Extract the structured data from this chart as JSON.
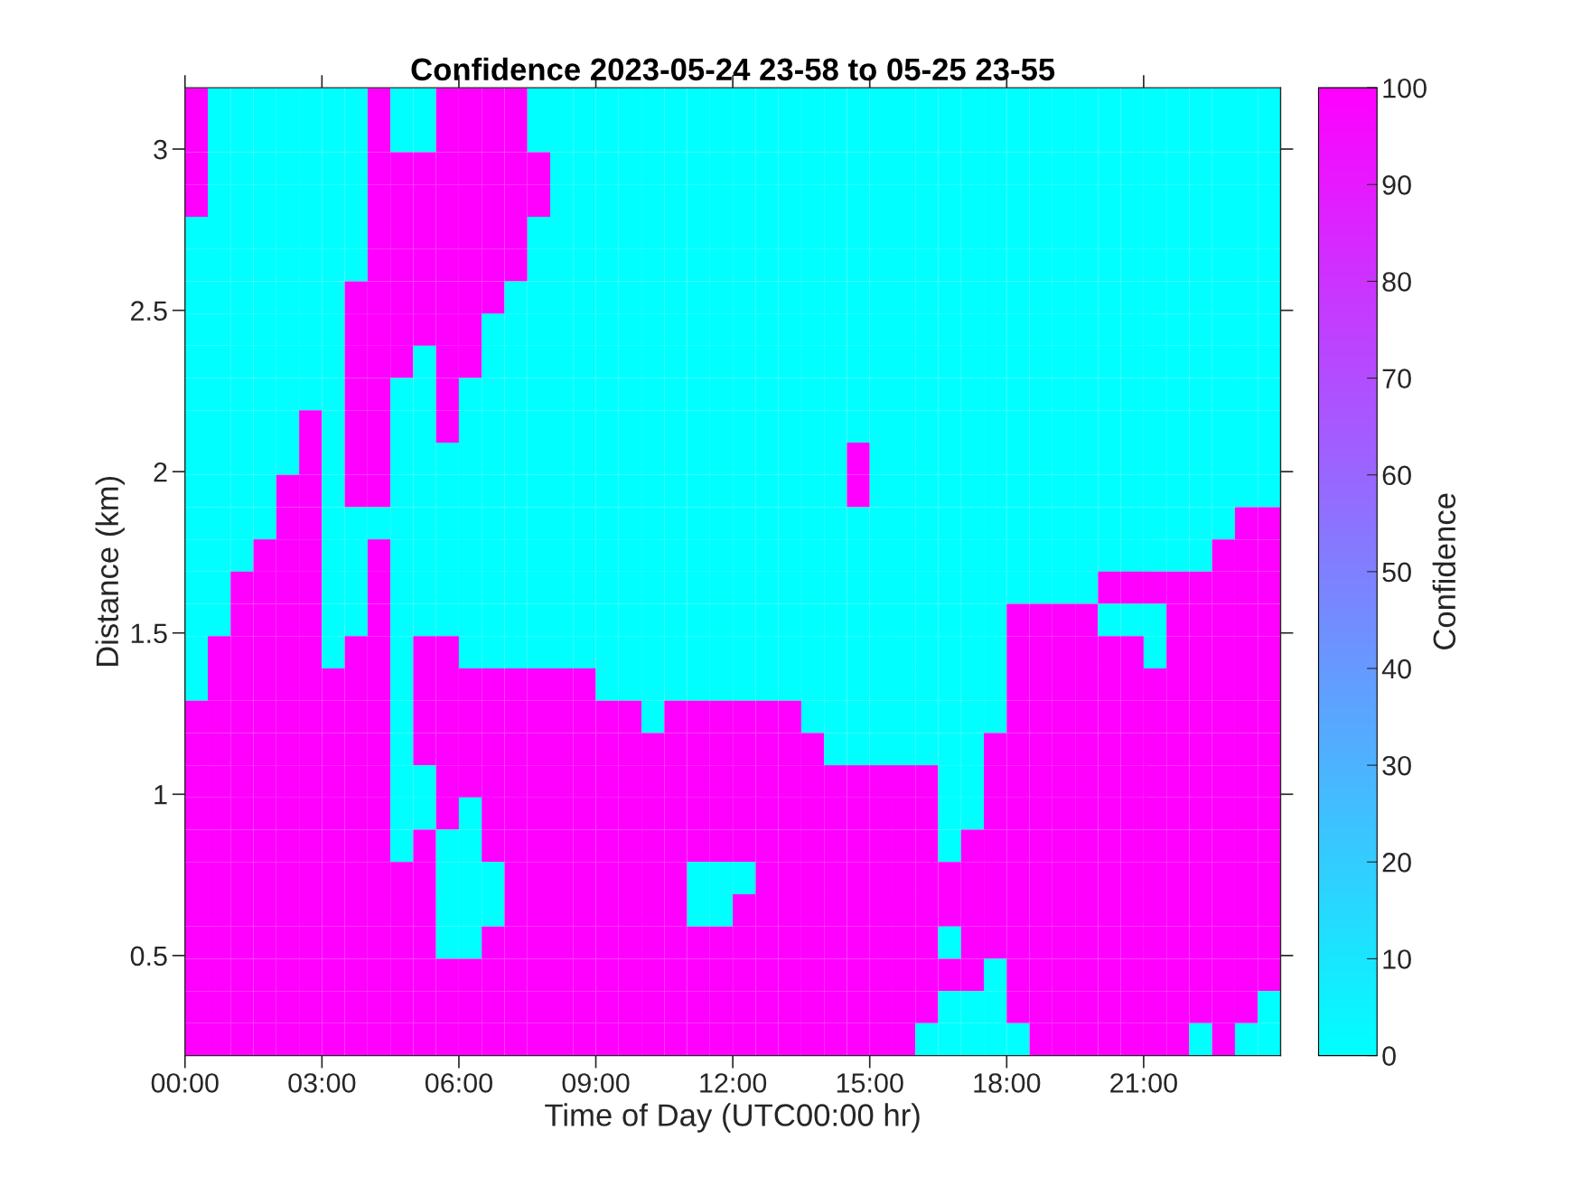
{
  "chart_data": {
    "type": "heatmap",
    "title": "Confidence 2023-05-24 23-58 to 05-25 23-55",
    "xlabel": "Time of Day (UTC00:00 hr)",
    "ylabel": "Distance (km)",
    "clabel": "Confidence",
    "x": [
      0.25,
      0.75,
      1.25,
      1.75,
      2.25,
      2.75,
      3.25,
      3.75,
      4.25,
      4.75,
      5.25,
      5.75,
      6.25,
      6.75,
      7.25,
      7.75,
      8.25,
      8.75,
      9.25,
      9.75,
      10.25,
      10.75,
      11.25,
      11.75,
      12.25,
      12.75,
      13.25,
      13.75,
      14.25,
      14.75,
      15.25,
      15.75,
      16.25,
      16.75,
      17.25,
      17.75,
      18.25,
      18.75,
      19.25,
      19.75,
      20.25,
      20.75,
      21.25,
      21.75,
      22.25,
      22.75,
      23.25,
      23.75
    ],
    "y": [
      3.14,
      3.04,
      2.94,
      2.84,
      2.74,
      2.64,
      2.54,
      2.44,
      2.34,
      2.24,
      2.14,
      2.04,
      1.94,
      1.84,
      1.74,
      1.64,
      1.54,
      1.44,
      1.34,
      1.24,
      1.14,
      1.04,
      0.94,
      0.84,
      0.74,
      0.64,
      0.54,
      0.44,
      0.34,
      0.24
    ],
    "cells": [
      [
        100,
        0,
        0,
        0,
        0,
        0,
        0,
        0,
        100,
        0,
        0,
        100,
        100,
        100,
        100,
        0,
        0,
        0,
        0,
        0,
        0,
        0,
        0,
        0,
        0,
        0,
        0,
        0,
        0,
        0,
        0,
        0,
        0,
        0,
        0,
        0,
        0,
        0,
        0,
        0,
        0,
        0,
        0,
        0,
        0,
        0,
        0,
        0
      ],
      [
        100,
        0,
        0,
        0,
        0,
        0,
        0,
        0,
        100,
        0,
        0,
        100,
        100,
        100,
        100,
        0,
        0,
        0,
        0,
        0,
        0,
        0,
        0,
        0,
        0,
        0,
        0,
        0,
        0,
        0,
        0,
        0,
        0,
        0,
        0,
        0,
        0,
        0,
        0,
        0,
        0,
        0,
        0,
        0,
        0,
        0,
        0,
        0
      ],
      [
        100,
        0,
        0,
        0,
        0,
        0,
        0,
        0,
        100,
        100,
        100,
        100,
        100,
        100,
        100,
        100,
        0,
        0,
        0,
        0,
        0,
        0,
        0,
        0,
        0,
        0,
        0,
        0,
        0,
        0,
        0,
        0,
        0,
        0,
        0,
        0,
        0,
        0,
        0,
        0,
        0,
        0,
        0,
        0,
        0,
        0,
        0,
        0
      ],
      [
        100,
        0,
        0,
        0,
        0,
        0,
        0,
        0,
        100,
        100,
        100,
        100,
        100,
        100,
        100,
        100,
        0,
        0,
        0,
        0,
        0,
        0,
        0,
        0,
        0,
        0,
        0,
        0,
        0,
        0,
        0,
        0,
        0,
        0,
        0,
        0,
        0,
        0,
        0,
        0,
        0,
        0,
        0,
        0,
        0,
        0,
        0,
        0
      ],
      [
        0,
        0,
        0,
        0,
        0,
        0,
        0,
        0,
        100,
        100,
        100,
        100,
        100,
        100,
        100,
        0,
        0,
        0,
        0,
        0,
        0,
        0,
        0,
        0,
        0,
        0,
        0,
        0,
        0,
        0,
        0,
        0,
        0,
        0,
        0,
        0,
        0,
        0,
        0,
        0,
        0,
        0,
        0,
        0,
        0,
        0,
        0,
        0
      ],
      [
        0,
        0,
        0,
        0,
        0,
        0,
        0,
        0,
        100,
        100,
        100,
        100,
        100,
        100,
        100,
        0,
        0,
        0,
        0,
        0,
        0,
        0,
        0,
        0,
        0,
        0,
        0,
        0,
        0,
        0,
        0,
        0,
        0,
        0,
        0,
        0,
        0,
        0,
        0,
        0,
        0,
        0,
        0,
        0,
        0,
        0,
        0,
        0
      ],
      [
        0,
        0,
        0,
        0,
        0,
        0,
        0,
        100,
        100,
        100,
        100,
        100,
        100,
        100,
        0,
        0,
        0,
        0,
        0,
        0,
        0,
        0,
        0,
        0,
        0,
        0,
        0,
        0,
        0,
        0,
        0,
        0,
        0,
        0,
        0,
        0,
        0,
        0,
        0,
        0,
        0,
        0,
        0,
        0,
        0,
        0,
        0,
        0
      ],
      [
        0,
        0,
        0,
        0,
        0,
        0,
        0,
        100,
        100,
        100,
        100,
        100,
        100,
        0,
        0,
        0,
        0,
        0,
        0,
        0,
        0,
        0,
        0,
        0,
        0,
        0,
        0,
        0,
        0,
        0,
        0,
        0,
        0,
        0,
        0,
        0,
        0,
        0,
        0,
        0,
        0,
        0,
        0,
        0,
        0,
        0,
        0,
        0
      ],
      [
        0,
        0,
        0,
        0,
        0,
        0,
        0,
        100,
        100,
        100,
        0,
        100,
        100,
        0,
        0,
        0,
        0,
        0,
        0,
        0,
        0,
        0,
        0,
        0,
        0,
        0,
        0,
        0,
        0,
        0,
        0,
        0,
        0,
        0,
        0,
        0,
        0,
        0,
        0,
        0,
        0,
        0,
        0,
        0,
        0,
        0,
        0,
        0
      ],
      [
        0,
        0,
        0,
        0,
        0,
        0,
        0,
        100,
        100,
        0,
        0,
        100,
        0,
        0,
        0,
        0,
        0,
        0,
        0,
        0,
        0,
        0,
        0,
        0,
        0,
        0,
        0,
        0,
        0,
        0,
        0,
        0,
        0,
        0,
        0,
        0,
        0,
        0,
        0,
        0,
        0,
        0,
        0,
        0,
        0,
        0,
        0,
        0
      ],
      [
        0,
        0,
        0,
        0,
        0,
        100,
        0,
        100,
        100,
        0,
        0,
        100,
        0,
        0,
        0,
        0,
        0,
        0,
        0,
        0,
        0,
        0,
        0,
        0,
        0,
        0,
        0,
        0,
        0,
        0,
        0,
        0,
        0,
        0,
        0,
        0,
        0,
        0,
        0,
        0,
        0,
        0,
        0,
        0,
        0,
        0,
        0,
        0
      ],
      [
        0,
        0,
        0,
        0,
        0,
        100,
        0,
        100,
        100,
        0,
        0,
        0,
        0,
        0,
        0,
        0,
        0,
        0,
        0,
        0,
        0,
        0,
        0,
        0,
        0,
        0,
        0,
        0,
        0,
        100,
        0,
        0,
        0,
        0,
        0,
        0,
        0,
        0,
        0,
        0,
        0,
        0,
        0,
        0,
        0,
        0,
        0,
        0
      ],
      [
        0,
        0,
        0,
        0,
        100,
        100,
        0,
        100,
        100,
        0,
        0,
        0,
        0,
        0,
        0,
        0,
        0,
        0,
        0,
        0,
        0,
        0,
        0,
        0,
        0,
        0,
        0,
        0,
        0,
        100,
        0,
        0,
        0,
        0,
        0,
        0,
        0,
        0,
        0,
        0,
        0,
        0,
        0,
        0,
        0,
        0,
        0,
        0
      ],
      [
        0,
        0,
        0,
        0,
        100,
        100,
        0,
        0,
        0,
        0,
        0,
        0,
        0,
        0,
        0,
        0,
        0,
        0,
        0,
        0,
        0,
        0,
        0,
        0,
        0,
        0,
        0,
        0,
        0,
        0,
        0,
        0,
        0,
        0,
        0,
        0,
        0,
        0,
        0,
        0,
        0,
        0,
        0,
        0,
        0,
        0,
        100,
        100
      ],
      [
        0,
        0,
        0,
        100,
        100,
        100,
        0,
        0,
        100,
        0,
        0,
        0,
        0,
        0,
        0,
        0,
        0,
        0,
        0,
        0,
        0,
        0,
        0,
        0,
        0,
        0,
        0,
        0,
        0,
        0,
        0,
        0,
        0,
        0,
        0,
        0,
        0,
        0,
        0,
        0,
        0,
        0,
        0,
        0,
        0,
        100,
        100,
        100
      ],
      [
        0,
        0,
        100,
        100,
        100,
        100,
        0,
        0,
        100,
        0,
        0,
        0,
        0,
        0,
        0,
        0,
        0,
        0,
        0,
        0,
        0,
        0,
        0,
        0,
        0,
        0,
        0,
        0,
        0,
        0,
        0,
        0,
        0,
        0,
        0,
        0,
        0,
        0,
        0,
        0,
        100,
        100,
        100,
        100,
        100,
        100,
        100,
        100
      ],
      [
        0,
        0,
        100,
        100,
        100,
        100,
        0,
        0,
        100,
        0,
        0,
        0,
        0,
        0,
        0,
        0,
        0,
        0,
        0,
        0,
        0,
        0,
        0,
        0,
        0,
        0,
        0,
        0,
        0,
        0,
        0,
        0,
        0,
        0,
        0,
        0,
        100,
        100,
        100,
        100,
        0,
        0,
        0,
        100,
        100,
        100,
        100,
        100
      ],
      [
        0,
        100,
        100,
        100,
        100,
        100,
        0,
        100,
        100,
        0,
        100,
        100,
        0,
        0,
        0,
        0,
        0,
        0,
        0,
        0,
        0,
        0,
        0,
        0,
        0,
        0,
        0,
        0,
        0,
        0,
        0,
        0,
        0,
        0,
        0,
        0,
        100,
        100,
        100,
        100,
        100,
        100,
        0,
        100,
        100,
        100,
        100,
        100
      ],
      [
        0,
        100,
        100,
        100,
        100,
        100,
        100,
        100,
        100,
        0,
        100,
        100,
        100,
        100,
        100,
        100,
        100,
        100,
        0,
        0,
        0,
        0,
        0,
        0,
        0,
        0,
        0,
        0,
        0,
        0,
        0,
        0,
        0,
        0,
        0,
        0,
        100,
        100,
        100,
        100,
        100,
        100,
        100,
        100,
        100,
        100,
        100,
        100
      ],
      [
        100,
        100,
        100,
        100,
        100,
        100,
        100,
        100,
        100,
        0,
        100,
        100,
        100,
        100,
        100,
        100,
        100,
        100,
        100,
        100,
        0,
        100,
        100,
        100,
        100,
        100,
        100,
        0,
        0,
        0,
        0,
        0,
        0,
        0,
        0,
        0,
        100,
        100,
        100,
        100,
        100,
        100,
        100,
        100,
        100,
        100,
        100,
        100
      ],
      [
        100,
        100,
        100,
        100,
        100,
        100,
        100,
        100,
        100,
        0,
        100,
        100,
        100,
        100,
        100,
        100,
        100,
        100,
        100,
        100,
        100,
        100,
        100,
        100,
        100,
        100,
        100,
        100,
        0,
        0,
        0,
        0,
        0,
        0,
        0,
        100,
        100,
        100,
        100,
        100,
        100,
        100,
        100,
        100,
        100,
        100,
        100,
        100
      ],
      [
        100,
        100,
        100,
        100,
        100,
        100,
        100,
        100,
        100,
        0,
        0,
        100,
        100,
        100,
        100,
        100,
        100,
        100,
        100,
        100,
        100,
        100,
        100,
        100,
        100,
        100,
        100,
        100,
        100,
        100,
        100,
        100,
        100,
        0,
        0,
        100,
        100,
        100,
        100,
        100,
        100,
        100,
        100,
        100,
        100,
        100,
        100,
        100
      ],
      [
        100,
        100,
        100,
        100,
        100,
        100,
        100,
        100,
        100,
        0,
        0,
        100,
        0,
        100,
        100,
        100,
        100,
        100,
        100,
        100,
        100,
        100,
        100,
        100,
        100,
        100,
        100,
        100,
        100,
        100,
        100,
        100,
        100,
        0,
        0,
        100,
        100,
        100,
        100,
        100,
        100,
        100,
        100,
        100,
        100,
        100,
        100,
        100
      ],
      [
        100,
        100,
        100,
        100,
        100,
        100,
        100,
        100,
        100,
        0,
        100,
        0,
        0,
        100,
        100,
        100,
        100,
        100,
        100,
        100,
        100,
        100,
        100,
        100,
        100,
        100,
        100,
        100,
        100,
        100,
        100,
        100,
        100,
        0,
        100,
        100,
        100,
        100,
        100,
        100,
        100,
        100,
        100,
        100,
        100,
        100,
        100,
        100
      ],
      [
        100,
        100,
        100,
        100,
        100,
        100,
        100,
        100,
        100,
        100,
        100,
        0,
        0,
        0,
        100,
        100,
        100,
        100,
        100,
        100,
        100,
        100,
        0,
        0,
        0,
        100,
        100,
        100,
        100,
        100,
        100,
        100,
        100,
        100,
        100,
        100,
        100,
        100,
        100,
        100,
        100,
        100,
        100,
        100,
        100,
        100,
        100,
        100
      ],
      [
        100,
        100,
        100,
        100,
        100,
        100,
        100,
        100,
        100,
        100,
        100,
        0,
        0,
        0,
        100,
        100,
        100,
        100,
        100,
        100,
        100,
        100,
        0,
        0,
        100,
        100,
        100,
        100,
        100,
        100,
        100,
        100,
        100,
        100,
        100,
        100,
        100,
        100,
        100,
        100,
        100,
        100,
        100,
        100,
        100,
        100,
        100,
        100
      ],
      [
        100,
        100,
        100,
        100,
        100,
        100,
        100,
        100,
        100,
        100,
        100,
        0,
        0,
        100,
        100,
        100,
        100,
        100,
        100,
        100,
        100,
        100,
        100,
        100,
        100,
        100,
        100,
        100,
        100,
        100,
        100,
        100,
        100,
        0,
        100,
        100,
        100,
        100,
        100,
        100,
        100,
        100,
        100,
        100,
        100,
        100,
        100,
        100
      ],
      [
        100,
        100,
        100,
        100,
        100,
        100,
        100,
        100,
        100,
        100,
        100,
        100,
        100,
        100,
        100,
        100,
        100,
        100,
        100,
        100,
        100,
        100,
        100,
        100,
        100,
        100,
        100,
        100,
        100,
        100,
        100,
        100,
        100,
        100,
        100,
        0,
        100,
        100,
        100,
        100,
        100,
        100,
        100,
        100,
        100,
        100,
        100,
        100
      ],
      [
        100,
        100,
        100,
        100,
        100,
        100,
        100,
        100,
        100,
        100,
        100,
        100,
        100,
        100,
        100,
        100,
        100,
        100,
        100,
        100,
        100,
        100,
        100,
        100,
        100,
        100,
        100,
        100,
        100,
        100,
        100,
        100,
        100,
        0,
        0,
        0,
        100,
        100,
        100,
        100,
        100,
        100,
        100,
        100,
        100,
        100,
        100,
        0
      ],
      [
        100,
        100,
        100,
        100,
        100,
        100,
        100,
        100,
        100,
        100,
        100,
        100,
        100,
        100,
        100,
        100,
        100,
        100,
        100,
        100,
        100,
        100,
        100,
        100,
        100,
        100,
        100,
        100,
        100,
        100,
        100,
        100,
        0,
        0,
        0,
        0,
        0,
        100,
        100,
        100,
        100,
        100,
        100,
        100,
        0,
        100,
        0,
        0
      ]
    ],
    "xlim": [
      0,
      24
    ],
    "ylim": [
      0.19,
      3.19
    ],
    "xticks": [
      {
        "value": 0,
        "label": "00:00"
      },
      {
        "value": 3,
        "label": "03:00"
      },
      {
        "value": 6,
        "label": "06:00"
      },
      {
        "value": 9,
        "label": "09:00"
      },
      {
        "value": 12,
        "label": "12:00"
      },
      {
        "value": 15,
        "label": "15:00"
      },
      {
        "value": 18,
        "label": "18:00"
      },
      {
        "value": 21,
        "label": "21:00"
      }
    ],
    "yticks": [
      0.5,
      1,
      1.5,
      2,
      2.5,
      3
    ],
    "clim": [
      0,
      100
    ],
    "cticks": [
      0,
      10,
      20,
      30,
      40,
      50,
      60,
      70,
      80,
      90,
      100
    ],
    "grid": false,
    "legend": false
  }
}
